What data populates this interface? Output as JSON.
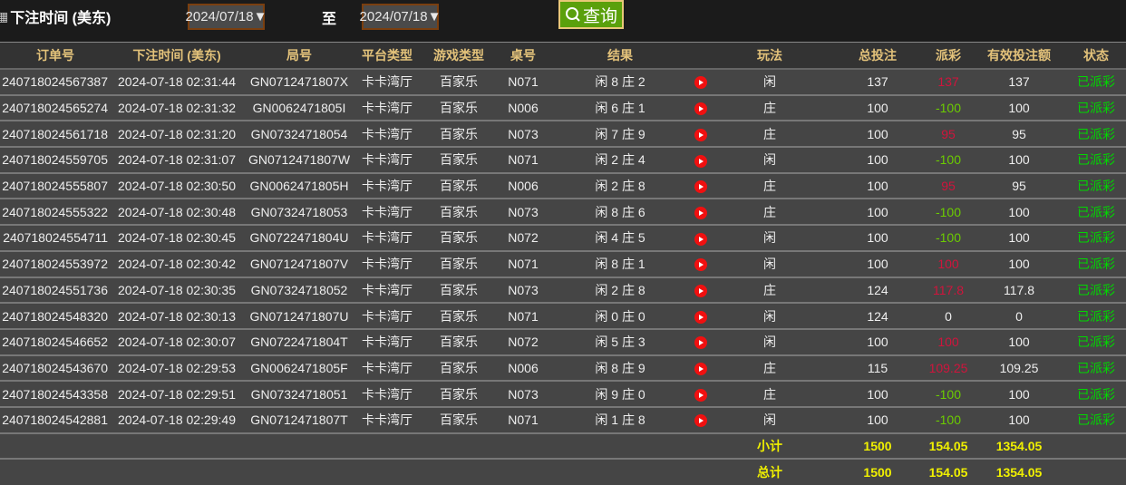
{
  "filter": {
    "label": "下注时间 (美东)",
    "from": "2024/07/18",
    "to_label": "至",
    "to": "2024/07/18",
    "query": "查询"
  },
  "columns": [
    "订单号",
    "下注时间 (美东)",
    "局号",
    "平台类型",
    "游戏类型",
    "桌号",
    "结果",
    "",
    "玩法",
    "总投注",
    "派彩",
    "有效投注额",
    "状态"
  ],
  "rows": [
    [
      "240718024567387",
      "2024-07-18 02:31:44",
      "GN0712471807X",
      "卡卡湾厅",
      "百家乐",
      "N071",
      "闲 8 庄 2",
      "闲",
      "137",
      "137",
      "137",
      "已派彩",
      "pos"
    ],
    [
      "240718024565274",
      "2024-07-18 02:31:32",
      "GN0062471805I",
      "卡卡湾厅",
      "百家乐",
      "N006",
      "闲 6 庄 1",
      "庄",
      "100",
      "-100",
      "100",
      "已派彩",
      "neg"
    ],
    [
      "240718024561718",
      "2024-07-18 02:31:20",
      "GN07324718054",
      "卡卡湾厅",
      "百家乐",
      "N073",
      "闲 7 庄 9",
      "庄",
      "100",
      "95",
      "95",
      "已派彩",
      "pos"
    ],
    [
      "240718024559705",
      "2024-07-18 02:31:07",
      "GN0712471807W",
      "卡卡湾厅",
      "百家乐",
      "N071",
      "闲 2 庄 4",
      "闲",
      "100",
      "-100",
      "100",
      "已派彩",
      "neg"
    ],
    [
      "240718024555807",
      "2024-07-18 02:30:50",
      "GN0062471805H",
      "卡卡湾厅",
      "百家乐",
      "N006",
      "闲 2 庄 8",
      "庄",
      "100",
      "95",
      "95",
      "已派彩",
      "pos"
    ],
    [
      "240718024555322",
      "2024-07-18 02:30:48",
      "GN07324718053",
      "卡卡湾厅",
      "百家乐",
      "N073",
      "闲 8 庄 6",
      "庄",
      "100",
      "-100",
      "100",
      "已派彩",
      "neg"
    ],
    [
      "240718024554711",
      "2024-07-18 02:30:45",
      "GN0722471804U",
      "卡卡湾厅",
      "百家乐",
      "N072",
      "闲 4 庄 5",
      "闲",
      "100",
      "-100",
      "100",
      "已派彩",
      "neg"
    ],
    [
      "240718024553972",
      "2024-07-18 02:30:42",
      "GN0712471807V",
      "卡卡湾厅",
      "百家乐",
      "N071",
      "闲 8 庄 1",
      "闲",
      "100",
      "100",
      "100",
      "已派彩",
      "pos"
    ],
    [
      "240718024551736",
      "2024-07-18 02:30:35",
      "GN07324718052",
      "卡卡湾厅",
      "百家乐",
      "N073",
      "闲 2 庄 8",
      "庄",
      "124",
      "117.8",
      "117.8",
      "已派彩",
      "pos"
    ],
    [
      "240718024548320",
      "2024-07-18 02:30:13",
      "GN0712471807U",
      "卡卡湾厅",
      "百家乐",
      "N071",
      "闲 0 庄 0",
      "闲",
      "124",
      "0",
      "0",
      "已派彩",
      "zero"
    ],
    [
      "240718024546652",
      "2024-07-18 02:30:07",
      "GN0722471804T",
      "卡卡湾厅",
      "百家乐",
      "N072",
      "闲 5 庄 3",
      "闲",
      "100",
      "100",
      "100",
      "已派彩",
      "pos"
    ],
    [
      "240718024543670",
      "2024-07-18 02:29:53",
      "GN0062471805F",
      "卡卡湾厅",
      "百家乐",
      "N006",
      "闲 8 庄 9",
      "庄",
      "115",
      "109.25",
      "109.25",
      "已派彩",
      "pos"
    ],
    [
      "240718024543358",
      "2024-07-18 02:29:51",
      "GN07324718051",
      "卡卡湾厅",
      "百家乐",
      "N073",
      "闲 9 庄 0",
      "庄",
      "100",
      "-100",
      "100",
      "已派彩",
      "neg"
    ],
    [
      "240718024542881",
      "2024-07-18 02:29:49",
      "GN0712471807T",
      "卡卡湾厅",
      "百家乐",
      "N071",
      "闲 1 庄 8",
      "闲",
      "100",
      "-100",
      "100",
      "已派彩",
      "neg"
    ]
  ],
  "subtotal": {
    "label": "小计",
    "total_bet": "1500",
    "payout": "154.05",
    "valid_bet": "1354.05"
  },
  "grandtotal": {
    "label": "总计",
    "total_bet": "1500",
    "payout": "154.05",
    "valid_bet": "1354.05"
  },
  "colors": {
    "payout_win": "#d0143c",
    "payout_loss": "#6ccc00",
    "status": "#00d800",
    "header_text": "#e3c27a",
    "totals": "#f0f000",
    "query_button": "#5aa00c"
  },
  "icons": {
    "calendar": "calendar-icon",
    "search": "search-icon",
    "video": "play-video-icon"
  }
}
